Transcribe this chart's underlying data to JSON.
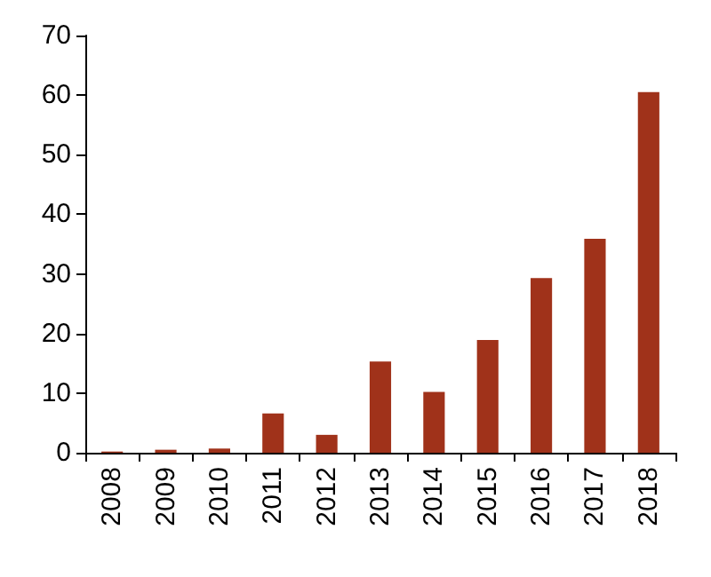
{
  "chart_data": {
    "type": "bar",
    "categories": [
      "2008",
      "2009",
      "2010",
      "2011",
      "2012",
      "2013",
      "2014",
      "2015",
      "2016",
      "2017",
      "2018"
    ],
    "values": [
      0.2,
      0.5,
      0.7,
      6.6,
      3,
      15.3,
      10.2,
      18.9,
      29.3,
      35.9,
      60.5
    ],
    "color": "#a0321a",
    "ylim": [
      0,
      70
    ],
    "yticks": [
      0,
      10,
      20,
      30,
      40,
      50,
      60,
      70
    ],
    "grid": false
  }
}
